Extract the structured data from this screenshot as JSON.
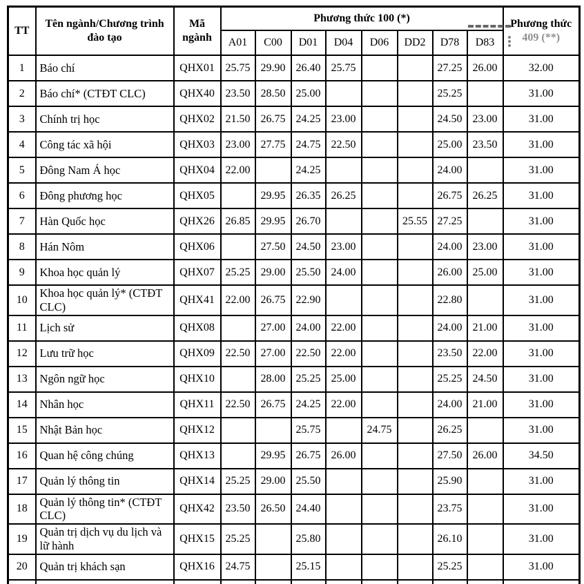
{
  "table": {
    "headers": {
      "tt": "TT",
      "name": "Tên ngành/Chương trình đào tạo",
      "code": "Mã ngành",
      "method100": "Phương thức 100 (*)",
      "method409_line1": "Phương thức",
      "method409_line2": "409 (**)",
      "subjects": [
        "A01",
        "C00",
        "D01",
        "D04",
        "D06",
        "DD2",
        "D78",
        "D83"
      ],
      "faded_subject": "D83"
    },
    "rows": [
      {
        "tt": "1",
        "name": "Báo chí",
        "code": "QHX01",
        "scores": [
          "25.75",
          "29.90",
          "26.40",
          "25.75",
          "",
          "",
          "27.25",
          "26.00"
        ],
        "method409": "32.00"
      },
      {
        "tt": "2",
        "name": "Báo chí* (CTĐT CLC)",
        "code": "QHX40",
        "scores": [
          "23.50",
          "28.50",
          "25.00",
          "",
          "",
          "",
          "25.25",
          ""
        ],
        "method409": "31.00"
      },
      {
        "tt": "3",
        "name": "Chính trị học",
        "code": "QHX02",
        "scores": [
          "21.50",
          "26.75",
          "24.25",
          "23.00",
          "",
          "",
          "24.50",
          "23.00"
        ],
        "method409": "31.00"
      },
      {
        "tt": "4",
        "name": "Công tác xã hội",
        "code": "QHX03",
        "scores": [
          "23.00",
          "27.75",
          "24.75",
          "22.50",
          "",
          "",
          "25.00",
          "23.50"
        ],
        "method409": "31.00"
      },
      {
        "tt": "5",
        "name": "Đông Nam Á học",
        "code": "QHX04",
        "scores": [
          "22.00",
          "",
          "24.25",
          "",
          "",
          "",
          "24.00",
          ""
        ],
        "method409": "31.00"
      },
      {
        "tt": "6",
        "name": "Đông phương học",
        "code": "QHX05",
        "scores": [
          "",
          "29.95",
          "26.35",
          "26.25",
          "",
          "",
          "26.75",
          "26.25"
        ],
        "method409": "31.00"
      },
      {
        "tt": "7",
        "name": "Hàn Quốc học",
        "code": "QHX26",
        "scores": [
          "26.85",
          "29.95",
          "26.70",
          "",
          "",
          "25.55",
          "27.25",
          ""
        ],
        "method409": "31.00"
      },
      {
        "tt": "8",
        "name": "Hán Nôm",
        "code": "QHX06",
        "scores": [
          "",
          "27.50",
          "24.50",
          "23.00",
          "",
          "",
          "24.00",
          "23.00"
        ],
        "method409": "31.00"
      },
      {
        "tt": "9",
        "name": "Khoa học quản lý",
        "code": "QHX07",
        "scores": [
          "25.25",
          "29.00",
          "25.50",
          "24.00",
          "",
          "",
          "26.00",
          "25.00"
        ],
        "method409": "31.00"
      },
      {
        "tt": "10",
        "name": "Khoa học quản lý* (CTĐT CLC)",
        "code": "QHX41",
        "scores": [
          "22.00",
          "26.75",
          "22.90",
          "",
          "",
          "",
          "22.80",
          ""
        ],
        "method409": "31.00"
      },
      {
        "tt": "11",
        "name": "Lịch sử",
        "code": "QHX08",
        "scores": [
          "",
          "27.00",
          "24.00",
          "22.00",
          "",
          "",
          "24.00",
          "21.00"
        ],
        "method409": "31.00"
      },
      {
        "tt": "12",
        "name": "Lưu trữ học",
        "code": "QHX09",
        "scores": [
          "22.50",
          "27.00",
          "22.50",
          "22.00",
          "",
          "",
          "23.50",
          "22.00"
        ],
        "method409": "31.00"
      },
      {
        "tt": "13",
        "name": "Ngôn ngữ học",
        "code": "QHX10",
        "scores": [
          "",
          "28.00",
          "25.25",
          "25.00",
          "",
          "",
          "25.25",
          "24.50"
        ],
        "method409": "31.00"
      },
      {
        "tt": "14",
        "name": "Nhân học",
        "code": "QHX11",
        "scores": [
          "22.50",
          "26.75",
          "24.25",
          "22.00",
          "",
          "",
          "24.00",
          "21.00"
        ],
        "method409": "31.00"
      },
      {
        "tt": "15",
        "name": "Nhật Bản học",
        "code": "QHX12",
        "scores": [
          "",
          "",
          "25.75",
          "",
          "24.75",
          "",
          "26.25",
          ""
        ],
        "method409": "31.00"
      },
      {
        "tt": "16",
        "name": "Quan hệ công chúng",
        "code": "QHX13",
        "scores": [
          "",
          "29.95",
          "26.75",
          "26.00",
          "",
          "",
          "27.50",
          "26.00"
        ],
        "method409": "34.50"
      },
      {
        "tt": "17",
        "name": "Quản lý thông tin",
        "code": "QHX14",
        "scores": [
          "25.25",
          "29.00",
          "25.50",
          "",
          "",
          "",
          "25.90",
          ""
        ],
        "method409": "31.00"
      },
      {
        "tt": "18",
        "name": "Quản lý thông tin* (CTĐT CLC)",
        "code": "QHX42",
        "scores": [
          "23.50",
          "26.50",
          "24.40",
          "",
          "",
          "",
          "23.75",
          ""
        ],
        "method409": "31.00"
      },
      {
        "tt": "19",
        "name": "Quản trị dịch vụ du lịch và lữ hành",
        "code": "QHX15",
        "scores": [
          "25.25",
          "",
          "25.80",
          "",
          "",
          "",
          "26.10",
          ""
        ],
        "method409": "31.00"
      },
      {
        "tt": "20",
        "name": "Quản trị khách sạn",
        "code": "QHX16",
        "scores": [
          "24.75",
          "",
          "25.15",
          "",
          "",
          "",
          "25.25",
          ""
        ],
        "method409": "31.00"
      }
    ]
  }
}
